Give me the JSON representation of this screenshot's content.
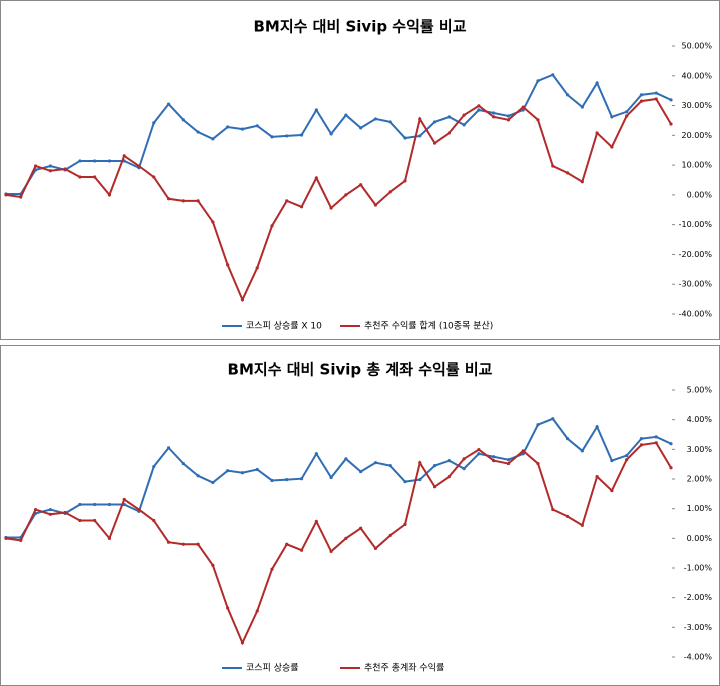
{
  "chart_data": [
    {
      "type": "line",
      "title": "BM지수 대비 Sivip 수익률 비교",
      "categories": [
        null,
        null,
        null,
        null,
        null,
        null,
        null,
        null,
        null,
        null,
        null,
        null,
        null,
        null,
        null,
        null,
        null,
        null,
        null,
        null,
        null,
        null,
        null,
        null,
        null,
        null,
        null,
        null,
        null,
        null,
        null,
        null,
        null,
        null,
        null,
        null,
        null,
        null,
        null,
        null,
        null,
        null,
        null,
        null,
        null,
        null
      ],
      "series": [
        {
          "name": "코스피 상승률 X 10",
          "color": "#2f6db5",
          "values": [
            0.3,
            0.3,
            8.4,
            9.7,
            8.4,
            11.4,
            11.4,
            11.4,
            11.4,
            9.1,
            24.2,
            30.5,
            25.2,
            21.1,
            18.8,
            22.8,
            22.1,
            23.2,
            19.5,
            19.8,
            20.1,
            28.5,
            20.5,
            26.8,
            22.5,
            25.5,
            24.5,
            19.1,
            19.8,
            24.5,
            26.2,
            23.5,
            28.5,
            27.5,
            26.5,
            28.5,
            38.3,
            40.3,
            33.6,
            29.5,
            37.6,
            26.2,
            27.9,
            33.6,
            34.2,
            31.9
          ]
        },
        {
          "name": "추천주 수익률 합계 (10종목 분산)",
          "color": "#b22a2a",
          "values": [
            0,
            -0.7,
            9.7,
            8.1,
            8.7,
            6,
            6,
            0,
            13.1,
            9.7,
            6,
            -1.3,
            -2,
            -2,
            -9.1,
            -23.5,
            -35.2,
            -24.5,
            -10.4,
            -2,
            -4,
            5.7,
            -4.4,
            0,
            3.4,
            -3.4,
            1,
            4.7,
            25.5,
            17.4,
            20.8,
            26.8,
            29.9,
            26.2,
            25.2,
            29.5,
            25.2,
            9.7,
            7.4,
            4.4,
            20.8,
            16.1,
            26.5,
            31.5,
            32.2,
            23.8
          ]
        }
      ],
      "ylim": [
        -40,
        50
      ],
      "yticks": [
        {
          "value": -40,
          "label": "-40.00%"
        },
        {
          "value": -30,
          "label": "-30.00%"
        },
        {
          "value": -20,
          "label": "-20.00%"
        },
        {
          "value": -10,
          "label": "-10.00%"
        },
        {
          "value": 0,
          "label": "0.00%"
        },
        {
          "value": 10,
          "label": "10.00%"
        },
        {
          "value": 20,
          "label": "20.00%"
        },
        {
          "value": 30,
          "label": "30.00%"
        },
        {
          "value": 40,
          "label": "40.00%"
        },
        {
          "value": 50,
          "label": "50.00%"
        }
      ]
    },
    {
      "type": "line",
      "title": "BM지수 대비 Sivip 총 계좌 수익률 비교",
      "categories": [
        null,
        null,
        null,
        null,
        null,
        null,
        null,
        null,
        null,
        null,
        null,
        null,
        null,
        null,
        null,
        null,
        null,
        null,
        null,
        null,
        null,
        null,
        null,
        null,
        null,
        null,
        null,
        null,
        null,
        null,
        null,
        null,
        null,
        null,
        null,
        null,
        null,
        null,
        null,
        null,
        null,
        null,
        null,
        null,
        null,
        null
      ],
      "series": [
        {
          "name": "코스피 상승률",
          "color": "#2f6db5",
          "values": [
            0.03,
            0.03,
            0.84,
            0.97,
            0.84,
            1.14,
            1.14,
            1.14,
            1.14,
            0.91,
            2.42,
            3.05,
            2.52,
            2.11,
            1.88,
            2.28,
            2.21,
            2.32,
            1.95,
            1.98,
            2.01,
            2.85,
            2.05,
            2.68,
            2.25,
            2.55,
            2.45,
            1.91,
            1.98,
            2.45,
            2.62,
            2.35,
            2.85,
            2.75,
            2.65,
            2.85,
            3.83,
            4.03,
            3.36,
            2.95,
            3.76,
            2.62,
            2.79,
            3.36,
            3.42,
            3.19
          ]
        },
        {
          "name": "추천주 총계좌 수익률",
          "color": "#b22a2a",
          "values": [
            0,
            -0.07,
            0.97,
            0.81,
            0.87,
            0.6,
            0.6,
            0,
            1.31,
            0.97,
            0.6,
            -0.13,
            -0.2,
            -0.2,
            -0.91,
            -2.35,
            -3.52,
            -2.45,
            -1.04,
            -0.2,
            -0.4,
            0.57,
            -0.44,
            0,
            0.34,
            -0.34,
            0.1,
            0.47,
            2.55,
            1.74,
            2.08,
            2.68,
            2.99,
            2.62,
            2.52,
            2.95,
            2.52,
            0.97,
            0.74,
            0.44,
            2.08,
            1.61,
            2.65,
            3.15,
            3.22,
            2.38
          ]
        }
      ],
      "ylim": [
        -4,
        5
      ],
      "yticks": [
        {
          "value": -4,
          "label": "-4.00%"
        },
        {
          "value": -3,
          "label": "-3.00%"
        },
        {
          "value": -2,
          "label": "-2.00%"
        },
        {
          "value": -1,
          "label": "-1.00%"
        },
        {
          "value": 0,
          "label": "0.00%"
        },
        {
          "value": 1,
          "label": "1.00%"
        },
        {
          "value": 2,
          "label": "2.00%"
        },
        {
          "value": 3,
          "label": "3.00%"
        },
        {
          "value": 4,
          "label": "4.00%"
        },
        {
          "value": 5,
          "label": "5.00%"
        }
      ]
    }
  ]
}
